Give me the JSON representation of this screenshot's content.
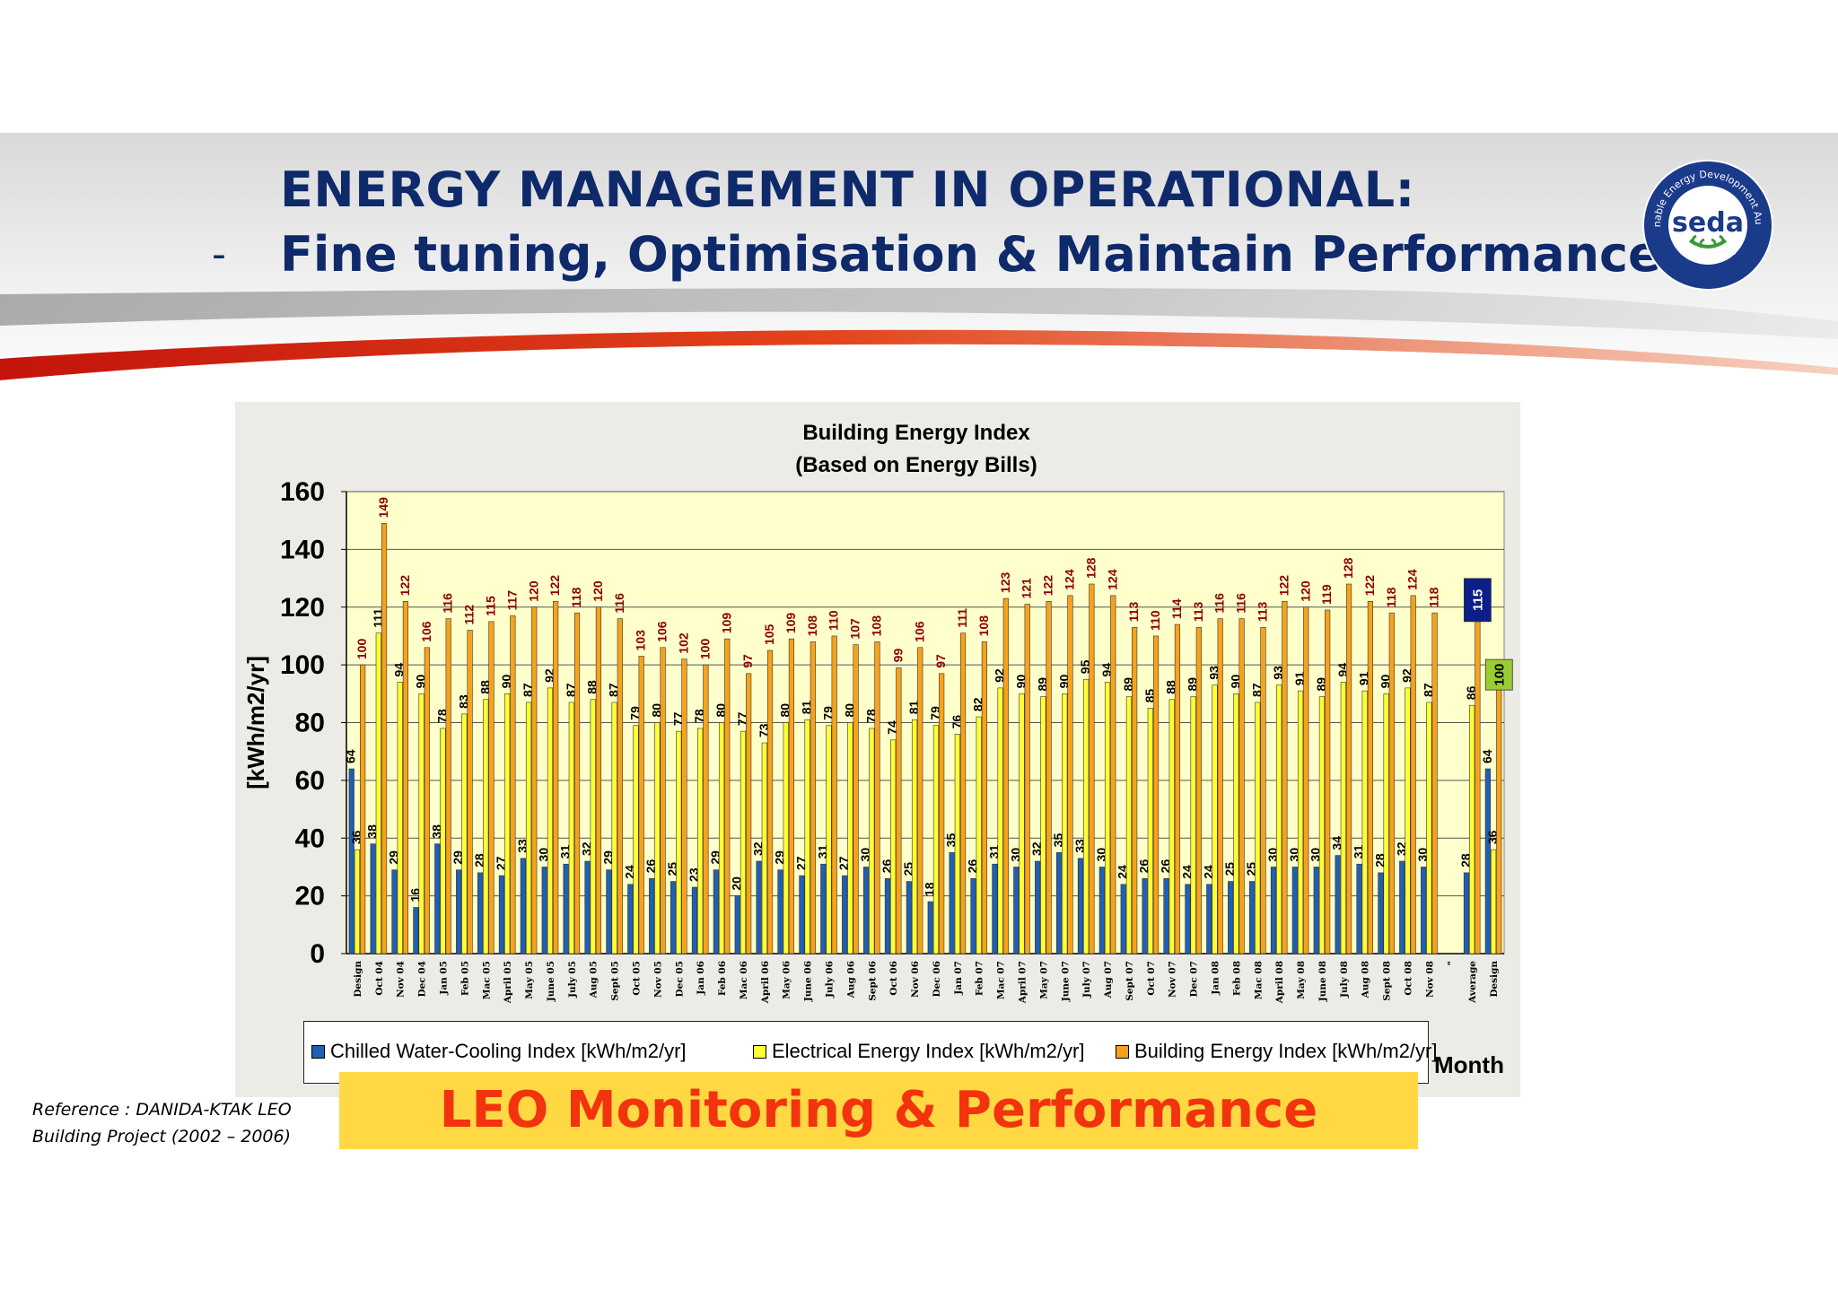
{
  "slide": {
    "title_line1": "ENERGY MANAGEMENT IN OPERATIONAL:",
    "bullet": "-",
    "title_line2": "Fine tuning, Optimisation & Maintain Performance.",
    "caption": "LEO Monitoring & Performance",
    "reference_line1": "Reference : DANIDA-KTAK LEO",
    "reference_line2": "Building Project (2002 – 2006)"
  },
  "logo": {
    "name": "seda",
    "ring_text_top": "Sustainable Energy Development Authority",
    "ring_text_bottom": "MALAYSIA",
    "icon": "seda-logo-icon"
  },
  "colors": {
    "title": "#0f2a6b",
    "caption_text": "#f2330e",
    "caption_bg": "#ffd844",
    "plot_bg": "#ffffcc",
    "chilled": "#1f5fb4",
    "electrical": "#ffff33",
    "building": "#f7a21b",
    "value_label_dark": "#000000",
    "value_label_red": "#8b0000",
    "average_badge": "#0b1f8a",
    "design_badge": "#9acd32"
  },
  "chart_data": {
    "type": "bar",
    "title": "Building Energy Index",
    "subtitle": "(Based on Energy Bills)",
    "ylabel": "[kWh/m2/yr]",
    "xlabel": "Month",
    "ylim": [
      0,
      160
    ],
    "yticks": [
      0,
      20,
      40,
      60,
      80,
      100,
      120,
      140,
      160
    ],
    "grid": true,
    "legend_position": "bottom",
    "categories": [
      "Design",
      "Oct 04",
      "Nov 04",
      "Dec 04",
      "Jan 05",
      "Feb 05",
      "Mac 05",
      "April 05",
      "May 05",
      "June 05",
      "July 05",
      "Aug 05",
      "Sept 05",
      "Oct 05",
      "Nov 05",
      "Dec 05",
      "Jan 06",
      "Feb 06",
      "Mac 06",
      "April 06",
      "May 06",
      "June 06",
      "July 06",
      "Aug 06",
      "Sept 06",
      "Oct 06",
      "Nov 06",
      "Dec 06",
      "Jan 07",
      "Feb 07",
      "Mac 07",
      "April 07",
      "May 07",
      "June 07",
      "July 07",
      "Aug 07",
      "Sept 07",
      "Oct 07",
      "Nov 07",
      "Dec 07",
      "Jan 08",
      "Feb 08",
      "Mac 08",
      "April 08",
      "May 08",
      "June 08",
      "July 08",
      "Aug 08",
      "Sept 08",
      "Oct 08",
      "Nov 08",
      "",
      "Average",
      "Design"
    ],
    "tick_labels": [
      "Design",
      "Oct 04",
      "Nov 04",
      "Dec 04",
      "Jan 05",
      "Feb 05",
      "Mac 05",
      "April 05",
      "May 05",
      "June 05",
      "July 05",
      "Aug 05",
      "Sept 05",
      "Oct 05",
      "Nov 05",
      "Dec 05",
      "Jan 06",
      "Feb 06",
      "Mac 06",
      "April 06",
      "May 06",
      "June 06",
      "July 06",
      "Aug 06",
      "Sept 06",
      "Oct 06",
      "Nov 06",
      "Dec 06",
      "Jan 07",
      "Feb 07",
      "Mac 07",
      "April 07",
      "May 07",
      "June 07",
      "July 07",
      "Aug 07",
      "Sept 07",
      "Oct 07",
      "Nov 07",
      "Dec 07",
      "Jan 08",
      "Feb 08",
      "Mac 08",
      "April 08",
      "May 08",
      "June 08",
      "July 08",
      "Aug 08",
      "Sept 08",
      "Oct 08",
      "Nov 08",
      "\"",
      "Average",
      "Design"
    ],
    "series": [
      {
        "name": "Chilled Water-Cooling Index [kWh/m2/yr]",
        "color": "#1f5fb4",
        "values": [
          64,
          38,
          29,
          16,
          38,
          29,
          28,
          27,
          33,
          30,
          31,
          32,
          29,
          24,
          26,
          25,
          23,
          29,
          20,
          32,
          29,
          27,
          31,
          27,
          30,
          26,
          25,
          18,
          35,
          26,
          31,
          30,
          32,
          35,
          33,
          30,
          24,
          26,
          26,
          24,
          24,
          25,
          25,
          30,
          30,
          30,
          34,
          31,
          28,
          32,
          30,
          null,
          28,
          64
        ]
      },
      {
        "name": "Electrical Energy Index [kWh/m2/yr]",
        "color": "#ffff33",
        "values": [
          36,
          111,
          94,
          90,
          78,
          83,
          88,
          90,
          87,
          92,
          87,
          88,
          87,
          79,
          80,
          77,
          78,
          80,
          77,
          73,
          80,
          81,
          79,
          80,
          78,
          74,
          81,
          79,
          76,
          82,
          92,
          90,
          89,
          90,
          95,
          94,
          89,
          85,
          88,
          89,
          93,
          90,
          87,
          93,
          91,
          89,
          94,
          91,
          90,
          92,
          87,
          null,
          86,
          36
        ]
      },
      {
        "name": "Building Energy Index [kWh/m2/yr]",
        "color": "#f7a21b",
        "values": [
          100,
          149,
          122,
          106,
          116,
          112,
          115,
          117,
          120,
          122,
          118,
          120,
          116,
          103,
          106,
          102,
          100,
          109,
          97,
          105,
          109,
          108,
          110,
          107,
          108,
          99,
          106,
          97,
          111,
          108,
          123,
          121,
          122,
          124,
          128,
          124,
          113,
          110,
          114,
          113,
          116,
          116,
          113,
          122,
          120,
          119,
          128,
          122,
          118,
          124,
          118,
          null,
          115,
          100
        ]
      }
    ],
    "annotations": [
      {
        "category": "Average",
        "value": 115,
        "style": "badge"
      },
      {
        "category": "Design",
        "value": 100,
        "style": "badge"
      }
    ]
  }
}
